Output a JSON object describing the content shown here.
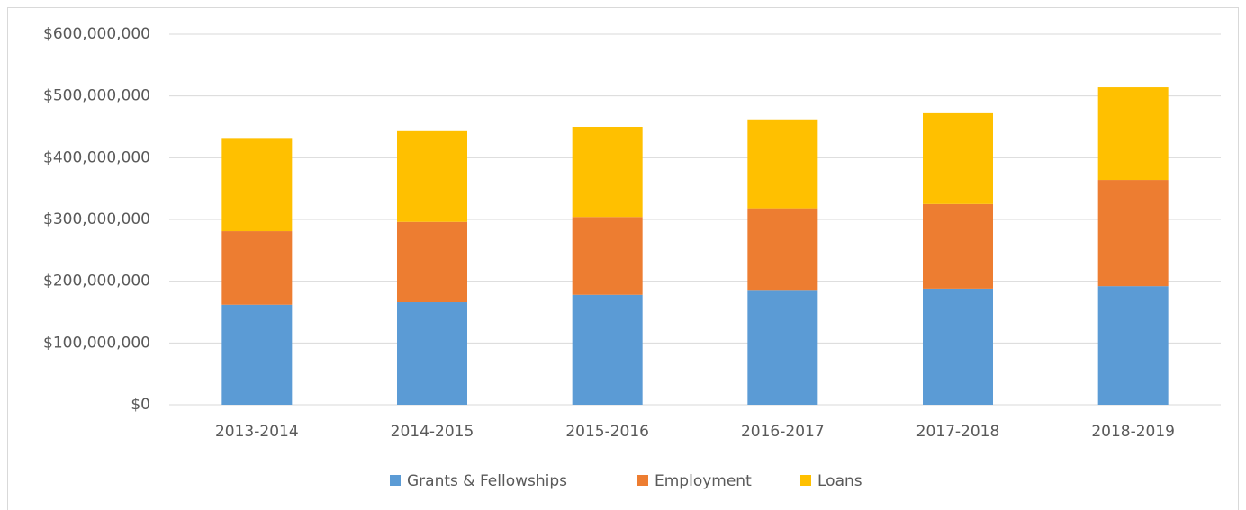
{
  "chart_data": {
    "type": "stacked_bar",
    "categories": [
      "2013-2014",
      "2014-2015",
      "2015-2016",
      "2016-2017",
      "2017-2018",
      "2018-2019"
    ],
    "series": [
      {
        "name": "Grants & Fellowships",
        "color": "#5b9bd5",
        "values": [
          162000000,
          166000000,
          178000000,
          186000000,
          188000000,
          192000000
        ]
      },
      {
        "name": "Employment",
        "color": "#ed7d31",
        "values": [
          119000000,
          130000000,
          126000000,
          132000000,
          137000000,
          172000000
        ]
      },
      {
        "name": "Loans",
        "color": "#ffc000",
        "values": [
          151000000,
          147000000,
          146000000,
          144000000,
          147000000,
          150000000
        ]
      }
    ],
    "ylim": [
      0,
      600000000
    ],
    "yticks": [
      {
        "value": 0,
        "label": "$0"
      },
      {
        "value": 100000000,
        "label": "$100,000,000"
      },
      {
        "value": 200000000,
        "label": "$200,000,000"
      },
      {
        "value": 300000000,
        "label": "$300,000,000"
      },
      {
        "value": 400000000,
        "label": "$400,000,000"
      },
      {
        "value": 500000000,
        "label": "$500,000,000"
      },
      {
        "value": 600000000,
        "label": "$600,000,000"
      }
    ],
    "grid": true,
    "legend": "bottom"
  }
}
